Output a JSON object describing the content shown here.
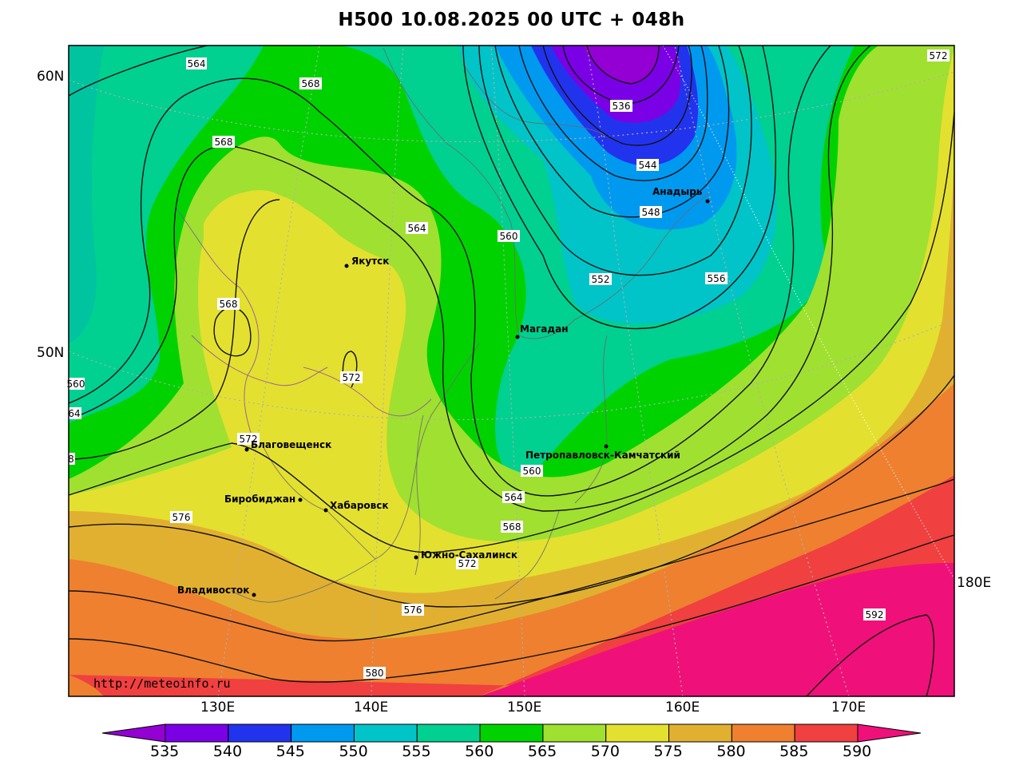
{
  "title": "H500  10.08.2025 00 UTC + 048h",
  "credit": "http://meteoinfo.ru",
  "lat_labels": [
    {
      "text": "60N",
      "lat": 60
    },
    {
      "text": "50N",
      "lat": 50
    }
  ],
  "lon_labels": [
    {
      "text": "130E",
      "lon": 130
    },
    {
      "text": "140E",
      "lon": 140
    },
    {
      "text": "150E",
      "lon": 150
    },
    {
      "text": "160E",
      "lon": 160
    },
    {
      "text": "170E",
      "lon": 170
    },
    {
      "text": "180E",
      "lon": 180
    }
  ],
  "legend": {
    "bins": [
      {
        "label": "535",
        "color": "#9400d3"
      },
      {
        "label": "540",
        "color": "#7a00e6"
      },
      {
        "label": "545",
        "color": "#2233ee"
      },
      {
        "label": "550",
        "color": "#0099f0"
      },
      {
        "label": "555",
        "color": "#00c4c8"
      },
      {
        "label": "560",
        "color": "#00d090"
      },
      {
        "label": "565",
        "color": "#00d200"
      },
      {
        "label": "570",
        "color": "#a0e030"
      },
      {
        "label": "575",
        "color": "#e4e030"
      },
      {
        "label": "580",
        "color": "#e2b030"
      },
      {
        "label": "585",
        "color": "#ee8030"
      },
      {
        "label": "590",
        "color": "#f04040"
      }
    ],
    "overflow_color": "#f0107a"
  },
  "isoline_labels": [
    "564",
    "568",
    "572",
    "568",
    "564",
    "560",
    "536",
    "544",
    "548",
    "552",
    "556",
    "568",
    "572",
    "572",
    "576",
    "560",
    "564",
    "568",
    "572",
    "576",
    "580",
    "592",
    "560",
    "64",
    "8"
  ],
  "cities": [
    "Якутск",
    "Магадан",
    "Анадырь",
    "Петропавловск-Камчатский",
    "Благовещенск",
    "Биробиджан",
    "Хабаровск",
    "Южно-Сахалинск",
    "Владивосток"
  ]
}
